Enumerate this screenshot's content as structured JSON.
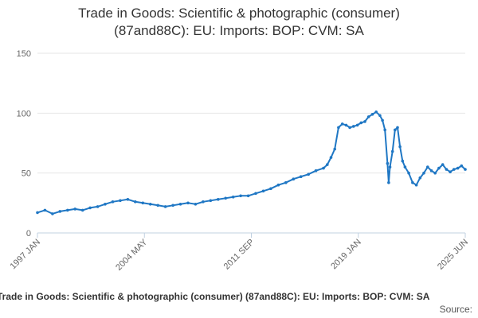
{
  "chart_data": {
    "type": "line",
    "title_line1": "Trade in Goods: Scientific & photographic (consumer)",
    "title_line2": "(87and88C): EU: Imports: BOP: CVM: SA",
    "x_ticks": [
      "1997 JAN",
      "2004 MAY",
      "2011 SEP",
      "2019 JAN",
      "2025 JUN"
    ],
    "y_ticks": [
      "0",
      "50",
      "100",
      "150"
    ],
    "ylim": [
      0,
      150
    ],
    "xlim": [
      "1997-01",
      "2025-06"
    ],
    "grid": "horizontal",
    "line_color": "#1f77c4",
    "series": [
      {
        "x": [
          "1997-01",
          "1997-07",
          "1998-01",
          "1998-07",
          "1999-01",
          "1999-07",
          "2000-01",
          "2000-07",
          "2001-01",
          "2001-07",
          "2002-01",
          "2002-07",
          "2003-01",
          "2003-07",
          "2004-01",
          "2004-07",
          "2005-01",
          "2005-07",
          "2006-01",
          "2006-07",
          "2007-01",
          "2007-07",
          "2008-01",
          "2008-07",
          "2009-01",
          "2009-07",
          "2010-01",
          "2010-07",
          "2011-01",
          "2011-07",
          "2012-01",
          "2012-07",
          "2013-01",
          "2013-07",
          "2014-01",
          "2014-07",
          "2015-01",
          "2015-07",
          "2016-01",
          "2016-04",
          "2016-07",
          "2016-10",
          "2017-01",
          "2017-04",
          "2017-07",
          "2017-10",
          "2018-01",
          "2018-04",
          "2018-07",
          "2018-10",
          "2019-01",
          "2019-04",
          "2019-07",
          "2019-10",
          "2019-12",
          "2020-02",
          "2020-04",
          "2020-05",
          "2020-06",
          "2020-08",
          "2020-10",
          "2020-12",
          "2021-02",
          "2021-04",
          "2021-06",
          "2021-09",
          "2021-12",
          "2022-03",
          "2022-06",
          "2022-09",
          "2022-12",
          "2023-03",
          "2023-06",
          "2023-09",
          "2023-12",
          "2024-03",
          "2024-06",
          "2024-09",
          "2024-12",
          "2025-03",
          "2025-06"
        ],
        "values": [
          17,
          19,
          16,
          18,
          19,
          20,
          19,
          21,
          22,
          24,
          26,
          27,
          28,
          26,
          25,
          24,
          23,
          22,
          23,
          24,
          25,
          24,
          26,
          27,
          28,
          29,
          30,
          31,
          31,
          33,
          35,
          37,
          40,
          42,
          45,
          47,
          49,
          52,
          54,
          57,
          63,
          70,
          88,
          91,
          90,
          88,
          89,
          90,
          92,
          93,
          97,
          99,
          101,
          98,
          94,
          86,
          58,
          42,
          55,
          68,
          86,
          88,
          72,
          60,
          55,
          50,
          42,
          40,
          46,
          50,
          55,
          52,
          50,
          54,
          57,
          53,
          51,
          53,
          54,
          56,
          53
        ]
      }
    ]
  },
  "footer": {
    "title": "Trade in Goods: Scientific & photographic (consumer) (87and88C): EU: Imports: BOP: CVM: SA",
    "source": "Source:"
  }
}
